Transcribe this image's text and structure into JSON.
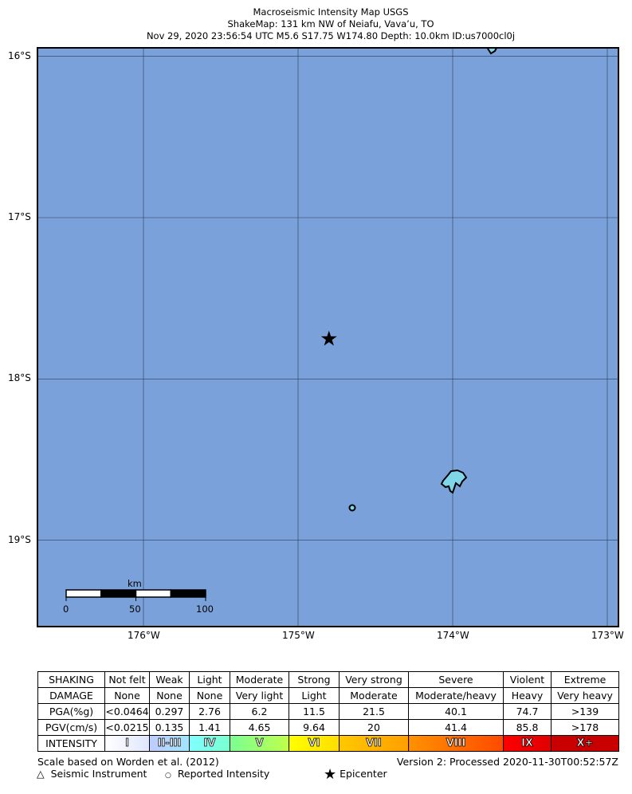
{
  "title": {
    "line1": "Macroseismic Intensity Map USGS",
    "line2": "ShakeMap: 131 km NW of Neiafu, Vava’u, TO",
    "line3": "Nov 29, 2020 23:56:54 UTC M5.6 S17.75 W174.80 Depth: 10.0km ID:us7000cl0j"
  },
  "map": {
    "ocean_color": "#7ba1da",
    "land_color": "#7fd6e8",
    "lat_labels": [
      "16°S",
      "17°S",
      "18°S",
      "19°S"
    ],
    "lon_labels": [
      "176°W",
      "175°W",
      "174°W",
      "173°W"
    ],
    "lat_values": [
      -16,
      -17,
      -18,
      -19
    ],
    "lon_values": [
      -176,
      -175,
      -174,
      -173
    ],
    "epicenter": {
      "lat": -17.75,
      "lon": -174.8
    },
    "scale_bar": {
      "unit": "km",
      "labels": [
        "0",
        "50",
        "100"
      ]
    }
  },
  "legend_table": {
    "rows": [
      {
        "header": "SHAKING",
        "cells": [
          "Not felt",
          "Weak",
          "Light",
          "Moderate",
          "Strong",
          "Very strong",
          "Severe",
          "Violent",
          "Extreme"
        ]
      },
      {
        "header": "DAMAGE",
        "cells": [
          "None",
          "None",
          "None",
          "Very light",
          "Light",
          "Moderate",
          "Moderate/heavy",
          "Heavy",
          "Very heavy"
        ]
      },
      {
        "header": "PGA(%g)",
        "cells": [
          "<0.0464",
          "0.297",
          "2.76",
          "6.2",
          "11.5",
          "21.5",
          "40.1",
          "74.7",
          ">139"
        ]
      },
      {
        "header": "PGV(cm/s)",
        "cells": [
          "<0.0215",
          "0.135",
          "1.41",
          "4.65",
          "9.64",
          "20",
          "41.4",
          "85.8",
          ">178"
        ]
      }
    ],
    "intensity": {
      "header": "INTENSITY",
      "cells": [
        "I",
        "II-III",
        "IV",
        "V",
        "VI",
        "VII",
        "VIII",
        "IX",
        "X+"
      ],
      "colors": [
        [
          "#ffffff",
          "#dfe6fe"
        ],
        [
          "#bfccff",
          "#a0e6ff"
        ],
        [
          "#80ffff",
          "#7affd0"
        ],
        [
          "#7aff93",
          "#c0ff4a"
        ],
        [
          "#ffff00",
          "#ffdd00"
        ],
        [
          "#ffc800",
          "#ff9f00"
        ],
        [
          "#ff9100",
          "#ff4a00"
        ],
        [
          "#ff0000",
          "#e00000"
        ],
        [
          "#c80000",
          "#c80000"
        ]
      ]
    }
  },
  "footer": {
    "scale_note": "Scale based on Worden et al. (2012)",
    "version": "Version 2: Processed 2020-11-30T00:52:57Z",
    "seismic_instrument": "Seismic Instrument",
    "reported_intensity": "Reported Intensity",
    "epicenter": "Epicenter"
  }
}
